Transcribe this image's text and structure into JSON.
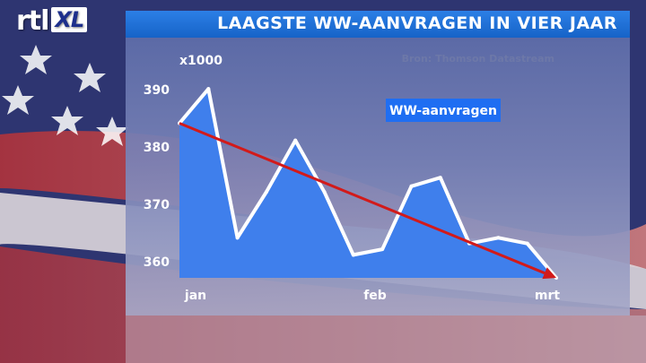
{
  "brand": {
    "logo_text": "rtl",
    "logo_box": "XL"
  },
  "header": {
    "title": "LAAGSTE WW-AANVRAGEN IN VIER JAAR"
  },
  "chart_data": {
    "type": "area",
    "title": "LAAGSTE WW-AANVRAGEN IN VIER JAAR",
    "unit_label": "x1000",
    "source": "Bron: Thomson Datastream",
    "legend": "WW-aanvragen",
    "xlabels": [
      "jan",
      "feb",
      "mrt"
    ],
    "yticks": [
      360,
      370,
      380,
      390
    ],
    "ylim": [
      357,
      393
    ],
    "series": [
      {
        "name": "WW-aanvragen",
        "values": [
          384,
          390,
          364,
          372,
          381,
          372,
          361,
          362,
          373,
          374.5,
          363,
          364,
          363,
          357
        ]
      }
    ],
    "trend": {
      "start": 384,
      "end": 357
    },
    "colors": {
      "fill": "#3f7fec",
      "line": "#ffffff",
      "trend": "#d21a1a"
    }
  }
}
